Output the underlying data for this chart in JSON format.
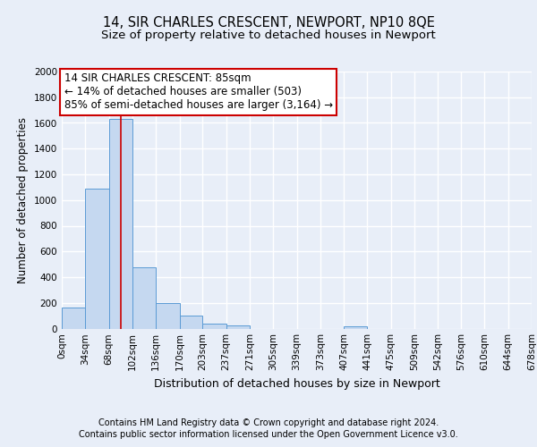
{
  "title1": "14, SIR CHARLES CRESCENT, NEWPORT, NP10 8QE",
  "title2": "Size of property relative to detached houses in Newport",
  "xlabel": "Distribution of detached houses by size in Newport",
  "ylabel": "Number of detached properties",
  "footer1": "Contains HM Land Registry data © Crown copyright and database right 2024.",
  "footer2": "Contains public sector information licensed under the Open Government Licence v3.0.",
  "annotation_title": "14 SIR CHARLES CRESCENT: 85sqm",
  "annotation_line2": "← 14% of detached houses are smaller (503)",
  "annotation_line3": "85% of semi-detached houses are larger (3,164) →",
  "bin_edges": [
    0,
    34,
    68,
    102,
    136,
    170,
    203,
    237,
    271,
    305,
    339,
    373,
    407,
    441,
    475,
    509,
    542,
    576,
    610,
    644,
    678
  ],
  "bar_heights": [
    165,
    1090,
    1630,
    480,
    200,
    100,
    40,
    25,
    0,
    0,
    0,
    0,
    15,
    0,
    0,
    0,
    0,
    0,
    0,
    0
  ],
  "bar_color": "#c5d8f0",
  "bar_edge_color": "#5b9bd5",
  "bar_alpha": 1.0,
  "vline_x": 85,
  "vline_color": "#cc0000",
  "ylim": [
    0,
    2000
  ],
  "yticks": [
    0,
    200,
    400,
    600,
    800,
    1000,
    1200,
    1400,
    1600,
    1800,
    2000
  ],
  "bg_color": "#e8eef8",
  "plot_bg_color": "#e8eef8",
  "grid_color": "#ffffff",
  "annotation_box_color": "#ffffff",
  "annotation_box_edge": "#cc0000",
  "title1_fontsize": 10.5,
  "title2_fontsize": 9.5,
  "xlabel_fontsize": 9,
  "ylabel_fontsize": 8.5,
  "tick_fontsize": 7.5,
  "footer_fontsize": 7,
  "annotation_fontsize": 8.5
}
